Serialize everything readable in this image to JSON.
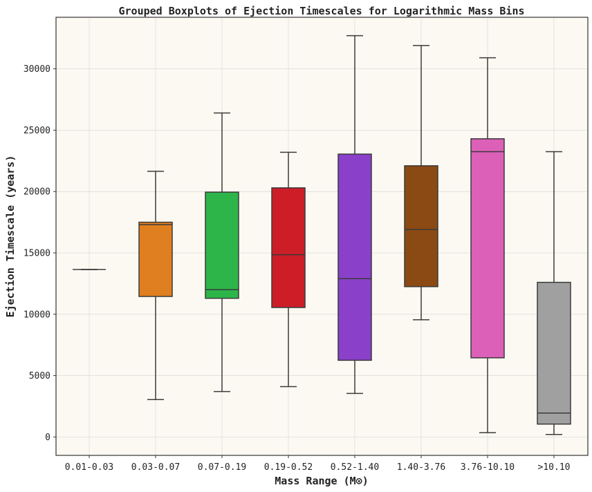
{
  "chart_data": {
    "type": "box",
    "title": "Grouped Boxplots of Ejection Timescales for Logarithmic Mass Bins",
    "xlabel": "Mass Range (M⊙)",
    "ylabel": "Ejection Timescale (years)",
    "ylim": [
      -1500,
      34200
    ],
    "yticks": [
      0,
      5000,
      10000,
      15000,
      20000,
      25000,
      30000
    ],
    "grid": true,
    "background": "#fcf9f2",
    "categories": [
      "0.01-0.03",
      "0.03-0.07",
      "0.07-0.19",
      "0.19-0.52",
      "0.52-1.40",
      "1.40-3.76",
      "3.76-10.10",
      ">10.10"
    ],
    "boxes": [
      {
        "whislo": 13650,
        "q1": 13650,
        "med": 13650,
        "q3": 13650,
        "whishi": 13650,
        "color": "#1f77b4"
      },
      {
        "whislo": 3050,
        "q1": 11450,
        "med": 17300,
        "q3": 17500,
        "whishi": 21650,
        "color": "#e07f1f"
      },
      {
        "whislo": 3700,
        "q1": 11300,
        "med": 12000,
        "q3": 19950,
        "whishi": 26400,
        "color": "#2db54a"
      },
      {
        "whislo": 4100,
        "q1": 10550,
        "med": 14850,
        "q3": 20300,
        "whishi": 23200,
        "color": "#cd1e28"
      },
      {
        "whislo": 3550,
        "q1": 6250,
        "med": 12900,
        "q3": 23050,
        "whishi": 32700,
        "color": "#8a40c9"
      },
      {
        "whislo": 9550,
        "q1": 12250,
        "med": 16900,
        "q3": 22100,
        "whishi": 31900,
        "color": "#8b4914"
      },
      {
        "whislo": 350,
        "q1": 6450,
        "med": 23250,
        "q3": 24300,
        "whishi": 30900,
        "color": "#dc60b8"
      },
      {
        "whislo": 200,
        "q1": 1050,
        "med": 1950,
        "q3": 12600,
        "whishi": 23250,
        "color": "#a0a0a0"
      }
    ]
  }
}
